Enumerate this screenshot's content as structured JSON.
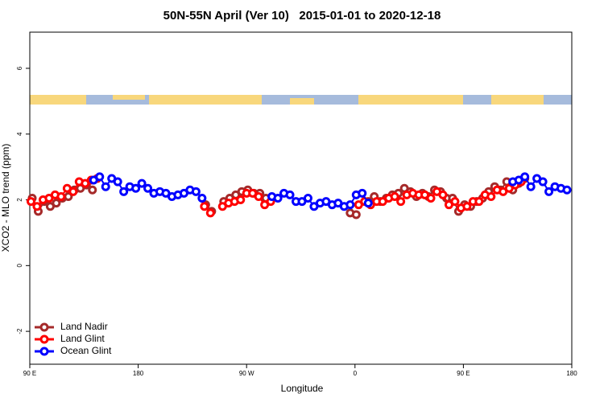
{
  "chart_data": {
    "type": "line",
    "title": "50N-55N April (Ver 10)   2015-01-01 to 2020-12-18",
    "xlabel": "Longitude",
    "ylabel": "XCO2 - MLO trend (ppm)",
    "xlim": [
      90,
      540
    ],
    "xticks": [
      {
        "value": 90,
        "label": "90 E"
      },
      180,
      {
        "value": 270,
        "label": "90 W"
      },
      {
        "value": 360,
        "label": "0"
      },
      {
        "value": 450,
        "label": "90 E"
      },
      {
        "value": 540,
        "label": "180"
      }
    ],
    "ylim": [
      -3,
      7.1
    ],
    "yticks": [
      -2,
      0,
      2,
      4,
      6
    ],
    "legend": "bottom-left",
    "series": [
      {
        "name": "Land Nadir",
        "color": "#a52a2a",
        "x": [
          92,
          97,
          102,
          107,
          112,
          117,
          122,
          127,
          132,
          137,
          142,
          190,
          236,
          241,
          246,
          251,
          256,
          261,
          266,
          271,
          276,
          281,
          286,
          320,
          356,
          361,
          366,
          371,
          376,
          381,
          386,
          391,
          396,
          401,
          406,
          411,
          416,
          421,
          426,
          431,
          436,
          441,
          446,
          451,
          456,
          461,
          466,
          471,
          476,
          481,
          486,
          491,
          496,
          501
        ],
        "values": [
          2.05,
          1.65,
          1.95,
          1.8,
          1.9,
          2.05,
          2.1,
          2.3,
          2.35,
          2.45,
          2.3,
          null,
          1.85,
          1.65,
          null,
          1.95,
          2.05,
          2.15,
          2.25,
          2.3,
          2.2,
          2.2,
          2.05,
          null,
          1.6,
          1.55,
          null,
          1.95,
          2.1,
          1.95,
          2.05,
          2.15,
          2.2,
          2.35,
          2.25,
          2.1,
          2.2,
          2.1,
          2.3,
          2.25,
          2.05,
          2.05,
          1.65,
          1.85,
          1.8,
          1.95,
          2.05,
          2.25,
          2.4,
          2.3,
          2.55,
          2.3,
          2.5,
          2.65
        ]
      },
      {
        "name": "Land Glint",
        "color": "#ff0000",
        "x": [
          91,
          96,
          101,
          106,
          111,
          116,
          121,
          126,
          131,
          136,
          141,
          146,
          190,
          235,
          240,
          245,
          250,
          255,
          260,
          265,
          270,
          275,
          280,
          285,
          290,
          330,
          363,
          368,
          373,
          378,
          383,
          388,
          393,
          398,
          403,
          408,
          413,
          418,
          423,
          428,
          433,
          438,
          443,
          448,
          453,
          458,
          463,
          468,
          473,
          478,
          483,
          488,
          493,
          498
        ],
        "values": [
          1.95,
          1.8,
          2.0,
          2.05,
          2.15,
          2.1,
          2.35,
          2.25,
          2.55,
          2.5,
          2.6,
          2.65,
          null,
          1.8,
          1.6,
          null,
          1.8,
          1.9,
          1.95,
          2.0,
          2.2,
          2.2,
          2.1,
          1.85,
          1.95,
          null,
          1.85,
          1.95,
          1.85,
          1.95,
          1.95,
          2.05,
          2.1,
          1.95,
          2.15,
          2.2,
          2.15,
          2.15,
          2.05,
          2.25,
          2.15,
          1.85,
          1.95,
          1.75,
          1.8,
          1.95,
          1.95,
          2.15,
          2.1,
          2.3,
          2.25,
          2.35,
          2.45,
          2.55
        ]
      },
      {
        "name": "Ocean Glint",
        "color": "#0000ff",
        "x": [
          143,
          148,
          153,
          158,
          163,
          168,
          173,
          178,
          183,
          188,
          193,
          198,
          203,
          208,
          213,
          218,
          223,
          228,
          233,
          260,
          291,
          296,
          301,
          306,
          311,
          316,
          321,
          326,
          331,
          336,
          341,
          346,
          351,
          356,
          361,
          366,
          371,
          450,
          491,
          496,
          501,
          506,
          511,
          516,
          521,
          526,
          531,
          536
        ],
        "values": [
          2.6,
          2.7,
          2.4,
          2.65,
          2.55,
          2.25,
          2.4,
          2.35,
          2.5,
          2.35,
          2.2,
          2.25,
          2.2,
          2.1,
          2.15,
          2.2,
          2.3,
          2.25,
          2.05,
          null,
          2.1,
          2.05,
          2.2,
          2.15,
          1.95,
          1.95,
          2.05,
          1.8,
          1.9,
          1.95,
          1.85,
          1.9,
          1.8,
          1.85,
          2.15,
          2.2,
          1.9,
          null,
          2.55,
          2.6,
          2.7,
          2.4,
          2.65,
          2.55,
          2.25,
          2.4,
          2.35,
          2.3
        ]
      }
    ]
  }
}
